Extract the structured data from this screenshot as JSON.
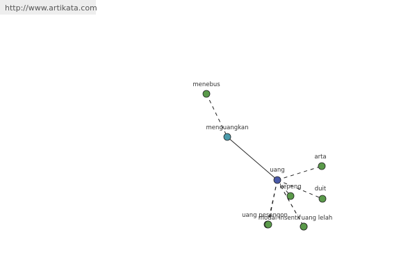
{
  "header": {
    "url": "http://www.artikata.com"
  },
  "nodes": [
    {
      "label": "menebus"
    },
    {
      "label": "menguangkan"
    },
    {
      "label": "uang"
    },
    {
      "label": "arta"
    },
    {
      "label": "kepeng"
    },
    {
      "label": "duit"
    },
    {
      "label": "uang pesangon"
    },
    {
      "label": "modal"
    },
    {
      "label": "insentif"
    },
    {
      "label": "uang lelah"
    }
  ]
}
